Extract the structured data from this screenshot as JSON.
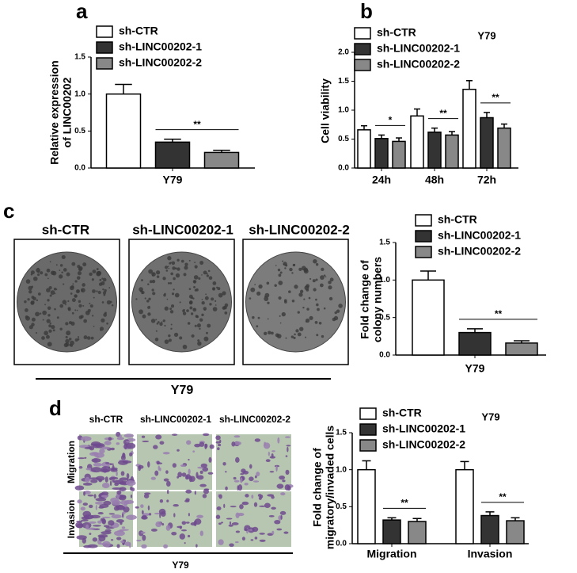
{
  "panel_labels": [
    "a",
    "b",
    "c",
    "d"
  ],
  "chart_data": [
    {
      "type": "bar",
      "categories": [
        "Y79"
      ],
      "ylabel": [
        "Relative expression",
        "of LINC00202"
      ],
      "ylim": [
        0,
        1.5
      ],
      "yticks": [
        {
          "value": 0,
          "label": "0.0"
        },
        0.5,
        {
          "value": 1,
          "label": "1.0"
        },
        1.5
      ],
      "series": [
        {
          "name": "sh-CTR",
          "color": "#ffffff",
          "values": [
            1.0
          ],
          "errors": [
            0.13
          ]
        },
        {
          "name": "sh-LINC00202-1",
          "color": "#333333",
          "values": [
            0.35
          ],
          "errors": [
            0.04
          ]
        },
        {
          "name": "sh-LINC00202-2",
          "color": "#888888",
          "values": [
            0.21
          ],
          "errors": [
            0.03
          ]
        }
      ],
      "annotations": [
        "**"
      ]
    },
    {
      "type": "bar",
      "title": "Y79",
      "categories": [
        "24h",
        "48h",
        "72h"
      ],
      "ylabel": [
        "Cell viability"
      ],
      "ylim": [
        0,
        2
      ],
      "yticks": [
        {
          "value": 0,
          "label": "0.0"
        },
        0.5,
        {
          "value": 1,
          "label": "1.0"
        },
        1.5,
        {
          "value": 2,
          "label": "2.0"
        }
      ],
      "series": [
        {
          "name": "sh-CTR",
          "color": "#ffffff",
          "values": [
            0.66,
            0.9,
            1.36
          ],
          "errors": [
            0.07,
            0.12,
            0.15
          ]
        },
        {
          "name": "sh-LINC00202-1",
          "color": "#333333",
          "values": [
            0.51,
            0.62,
            0.87
          ],
          "errors": [
            0.06,
            0.07,
            0.09
          ]
        },
        {
          "name": "sh-LINC00202-2",
          "color": "#888888",
          "values": [
            0.46,
            0.57,
            0.69
          ],
          "errors": [
            0.06,
            0.06,
            0.07
          ]
        }
      ],
      "annotations": [
        "*",
        "**",
        "**"
      ]
    },
    {
      "type": "bar",
      "categories": [
        "Y79"
      ],
      "ylabel": [
        "Fold change of",
        "colony numbers"
      ],
      "ylim": [
        0,
        1.5
      ],
      "yticks": [
        {
          "value": 0,
          "label": "0.0"
        },
        0.5,
        {
          "value": 1,
          "label": "1.0"
        },
        1.5
      ],
      "series": [
        {
          "name": "sh-CTR",
          "color": "#ffffff",
          "values": [
            1.0
          ],
          "errors": [
            0.12
          ]
        },
        {
          "name": "sh-LINC00202-1",
          "color": "#333333",
          "values": [
            0.3
          ],
          "errors": [
            0.05
          ]
        },
        {
          "name": "sh-LINC00202-2",
          "color": "#888888",
          "values": [
            0.16
          ],
          "errors": [
            0.03
          ]
        }
      ],
      "annotations": [
        "**"
      ]
    },
    {
      "type": "bar",
      "title": "Y79",
      "categories": [
        "Migration",
        "Invasion"
      ],
      "ylabel": [
        "Fold change of",
        "migratory/invaded cells"
      ],
      "ylim": [
        0,
        1.5
      ],
      "yticks": [
        {
          "value": 0,
          "label": "0.0"
        },
        0.5,
        {
          "value": 1,
          "label": "1.0"
        },
        1.5
      ],
      "series": [
        {
          "name": "sh-CTR",
          "color": "#ffffff",
          "values": [
            1.0,
            1.0
          ],
          "errors": [
            0.12,
            0.11
          ]
        },
        {
          "name": "sh-LINC00202-1",
          "color": "#333333",
          "values": [
            0.32,
            0.38
          ],
          "errors": [
            0.03,
            0.05
          ]
        },
        {
          "name": "sh-LINC00202-2",
          "color": "#888888",
          "values": [
            0.3,
            0.31
          ],
          "errors": [
            0.04,
            0.04
          ]
        }
      ],
      "annotations": [
        "**",
        "**"
      ]
    }
  ],
  "colony_images": {
    "labels": [
      "sh-CTR",
      "sh-LINC00202-1",
      "sh-LINC00202-2"
    ],
    "group": "Y79"
  },
  "transwell_images": {
    "columns": [
      "sh-CTR",
      "sh-LINC00202-1",
      "sh-LINC00202-2"
    ],
    "rows": [
      "Migration",
      "Invasion"
    ],
    "group": "Y79"
  }
}
